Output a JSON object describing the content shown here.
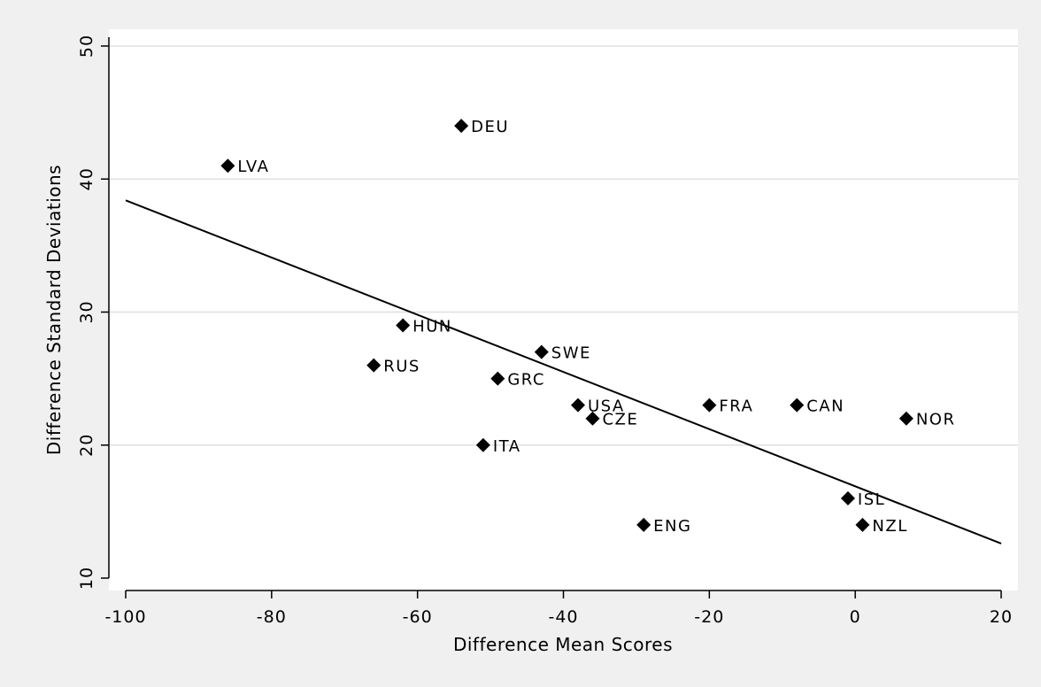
{
  "chart_data": {
    "type": "scatter",
    "title": "",
    "xlabel": "Difference Mean Scores",
    "ylabel": "Difference Standard Deviations",
    "xlim": [
      -100,
      20
    ],
    "ylim": [
      10,
      50
    ],
    "xticks": [
      -100,
      -80,
      -60,
      -40,
      -20,
      0,
      20
    ],
    "yticks": [
      10,
      20,
      30,
      40,
      50
    ],
    "grid": "horizontal",
    "legend": "none",
    "marker": "diamond",
    "series": [
      {
        "points": [
          {
            "label": "DEU",
            "x": -54,
            "y": 44
          },
          {
            "label": "LVA",
            "x": -86,
            "y": 41
          },
          {
            "label": "HUN",
            "x": -62,
            "y": 29
          },
          {
            "label": "SWE",
            "x": -43,
            "y": 27
          },
          {
            "label": "RUS",
            "x": -66,
            "y": 26
          },
          {
            "label": "GRC",
            "x": -49,
            "y": 25
          },
          {
            "label": "USA",
            "x": -38,
            "y": 23
          },
          {
            "label": "FRA",
            "x": -20,
            "y": 23
          },
          {
            "label": "CAN",
            "x": -8,
            "y": 23
          },
          {
            "label": "CZE",
            "x": -36,
            "y": 22
          },
          {
            "label": "NOR",
            "x": 7,
            "y": 22
          },
          {
            "label": "ITA",
            "x": -51,
            "y": 20
          },
          {
            "label": "ISL",
            "x": -1,
            "y": 16
          },
          {
            "label": "ENG",
            "x": -29,
            "y": 14
          },
          {
            "label": "NZL",
            "x": 1,
            "y": 14
          }
        ]
      }
    ],
    "fit_line": {
      "x": [
        -100,
        20
      ],
      "y": [
        38.4,
        12.6
      ]
    },
    "colors": {
      "marker": "#000000",
      "fit_line": "#000000",
      "grid": "#e0e0e0",
      "plot_bg": "#ffffff",
      "page_bg": "#f0f0f0"
    }
  }
}
